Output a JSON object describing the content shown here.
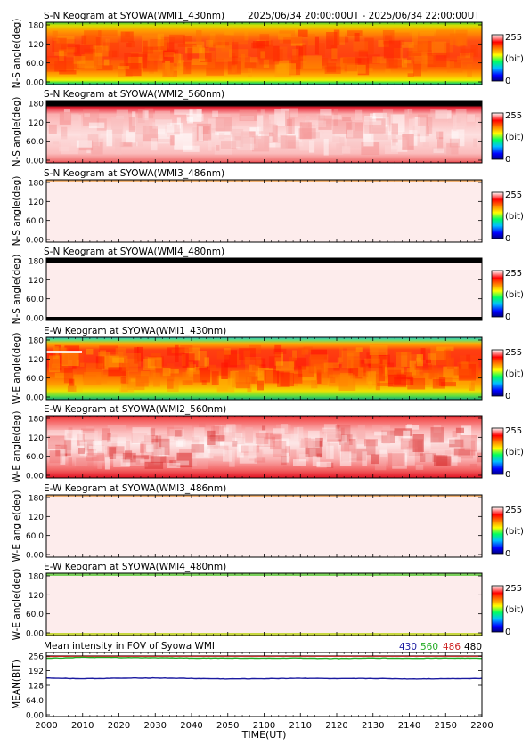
{
  "header": {
    "time_range": "2025/06/34 20:00:00UT - 2025/06/34 22:00:00UT"
  },
  "colorbar": {
    "max_label": "255",
    "unit_label": "(bit)",
    "min_label": "0",
    "colors": [
      "#000080",
      "#0000ff",
      "#00c0ff",
      "#00ff60",
      "#ffff00",
      "#ff8000",
      "#ff0000",
      "#ffffff"
    ]
  },
  "keograms": [
    {
      "title": "S-N Keogram at SYOWA(WMI1_430nm)",
      "ylabel": "N-S angle(deg)",
      "style": "red_fire_ns"
    },
    {
      "title": "S-N Keogram at SYOWA(WMI2_560nm)",
      "ylabel": "N-S angle(deg)",
      "style": "pink_top_black"
    },
    {
      "title": "S-N Keogram at SYOWA(WMI3_486nm)",
      "ylabel": "N-S angle(deg)",
      "style": "faint"
    },
    {
      "title": "S-N Keogram at SYOWA(WMI4_480nm)",
      "ylabel": "N-S angle(deg)",
      "style": "faint_black_edges"
    },
    {
      "title": "E-W Keogram at SYOWA(WMI1_430nm)",
      "ylabel": "W-E angle(deg)",
      "style": "red_fire_ew"
    },
    {
      "title": "E-W Keogram at SYOWA(WMI2_560nm)",
      "ylabel": "W-E angle(deg)",
      "style": "pink_ew"
    },
    {
      "title": "E-W Keogram at SYOWA(WMI3_486nm)",
      "ylabel": "W-E angle(deg)",
      "style": "faint"
    },
    {
      "title": "E-W Keogram at SYOWA(WMI4_480nm)",
      "ylabel": "W-E angle(deg)",
      "style": "faint_green_edges"
    }
  ],
  "keogram_yticks": [
    "180",
    "120",
    "60.0",
    "0.00"
  ],
  "mean_panel": {
    "title": "Mean intensity in FOV of Syowa WMI",
    "ylabel": "MEAN(BIT)",
    "yticks": [
      "256",
      "192",
      "128",
      "64.0",
      "0.00"
    ],
    "legend": [
      {
        "label": "430",
        "color": "#1a1aa0"
      },
      {
        "label": "560",
        "color": "#22aa22"
      },
      {
        "label": "486",
        "color": "#cc2222"
      },
      {
        "label": "480",
        "color": "#000000"
      }
    ]
  },
  "xaxis": {
    "ticks": [
      "2000",
      "2010",
      "2020",
      "2030",
      "2040",
      "2050",
      "2100",
      "2110",
      "2120",
      "2130",
      "2140",
      "2150",
      "2200"
    ],
    "label": "TIME(UT)"
  },
  "chart_data": {
    "type": "line",
    "title": "Mean intensity in FOV of Syowa WMI",
    "ylabel": "MEAN(BIT)",
    "xlabel": "TIME(UT)",
    "ylim": [
      0,
      256
    ],
    "categories": [
      "2000",
      "2010",
      "2020",
      "2030",
      "2040",
      "2050",
      "2100",
      "2110",
      "2120",
      "2130",
      "2140",
      "2150",
      "2200"
    ],
    "series": [
      {
        "name": "430",
        "values": [
          160,
          157,
          159,
          160,
          158,
          156,
          157,
          159,
          157,
          158,
          156,
          157,
          158
        ]
      },
      {
        "name": "560",
        "values": [
          246,
          250,
          249,
          248,
          247,
          247,
          246,
          247,
          245,
          247,
          246,
          247,
          246
        ]
      },
      {
        "name": "486",
        "values": [
          254,
          255,
          255,
          255,
          255,
          255,
          255,
          255,
          255,
          255,
          255,
          255,
          255
        ]
      },
      {
        "name": "480",
        "values": [
          256,
          256,
          256,
          256,
          256,
          256,
          256,
          256,
          256,
          256,
          256,
          256,
          256
        ]
      }
    ]
  }
}
